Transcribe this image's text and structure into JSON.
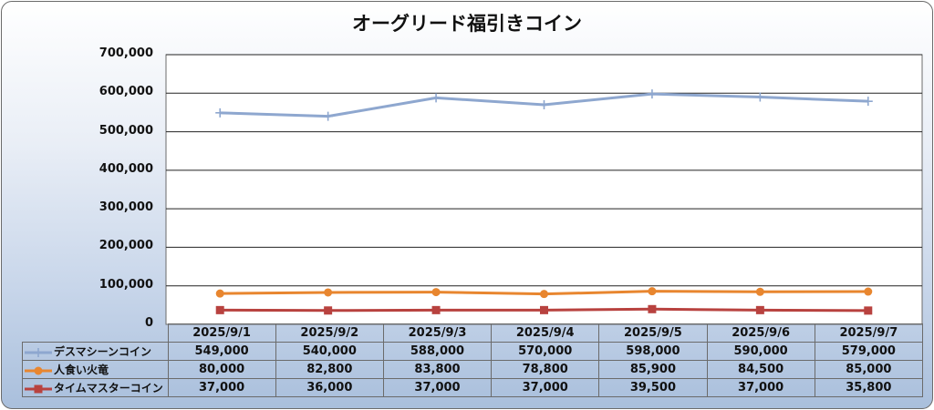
{
  "chart_data": {
    "type": "line",
    "title": "オーグリード福引きコイン",
    "categories": [
      "2025/9/1",
      "2025/9/2",
      "2025/9/3",
      "2025/9/4",
      "2025/9/5",
      "2025/9/6",
      "2025/9/7"
    ],
    "ylim": [
      0,
      700000
    ],
    "yticks": [
      "0",
      "100,000",
      "200,000",
      "300,000",
      "400,000",
      "500,000",
      "600,000",
      "700,000"
    ],
    "grid": true,
    "legend": "data-table",
    "series": [
      {
        "name": "デスマシーンコイン",
        "color": "#8ea7cf",
        "marker": "plus",
        "values": [
          549000,
          540000,
          588000,
          570000,
          598000,
          590000,
          579000
        ],
        "labels": [
          "549,000",
          "540,000",
          "588,000",
          "570,000",
          "598,000",
          "590,000",
          "579,000"
        ]
      },
      {
        "name": "人食い火竜",
        "color": "#e8862f",
        "marker": "circle",
        "values": [
          80000,
          82800,
          83800,
          78800,
          85900,
          84500,
          85000
        ],
        "labels": [
          "80,000",
          "82,800",
          "83,800",
          "78,800",
          "85,900",
          "84,500",
          "85,000"
        ]
      },
      {
        "name": "タイムマスターコイン",
        "color": "#b8423f",
        "marker": "square",
        "values": [
          37000,
          36000,
          37000,
          37000,
          39500,
          37000,
          35800
        ],
        "labels": [
          "37,000",
          "36,000",
          "37,000",
          "37,000",
          "39,500",
          "37,000",
          "35,800"
        ]
      }
    ]
  }
}
